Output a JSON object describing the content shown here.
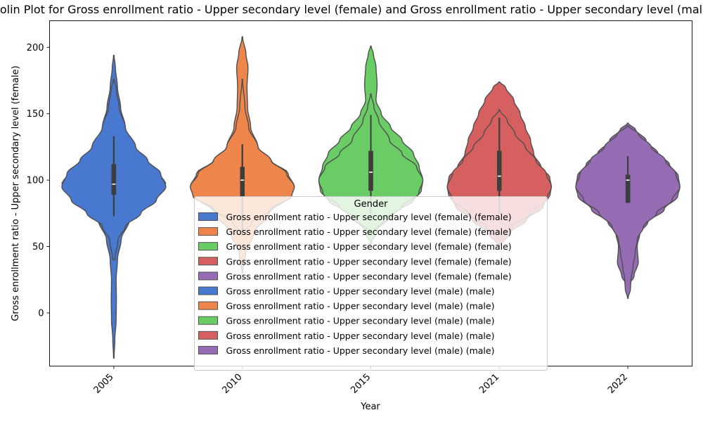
{
  "chart_data": {
    "type": "violin",
    "title": "Violin Plot for Gross enrollment ratio - Upper secondary level (female) and Gross enrollment ratio - Upper secondary level (male)",
    "xlabel": "Year",
    "ylabel": "Gross enrollment ratio - Upper secondary level (female)",
    "categories": [
      "2005",
      "2010",
      "2015",
      "2021",
      "2022"
    ],
    "ylim": [
      -40,
      220
    ],
    "yticks": [
      0,
      50,
      100,
      150,
      200
    ],
    "grid": false,
    "palette": [
      "#4878d0",
      "#ee854a",
      "#6acc64",
      "#d65f5f",
      "#956cb4"
    ],
    "series": [
      {
        "name": "Gross enrollment ratio - Upper secondary level (female)",
        "violins": [
          {
            "category": "2005",
            "min": -34,
            "max": 194,
            "q1": 89,
            "median": 97,
            "q3": 112,
            "whisker_low": 73,
            "whisker_high": 133,
            "profile": [
              [
                -34,
                0.005
              ],
              [
                -20,
                0.02
              ],
              [
                -5,
                0.045
              ],
              [
                10,
                0.05
              ],
              [
                25,
                0.045
              ],
              [
                40,
                0.07
              ],
              [
                55,
                0.14
              ],
              [
                70,
                0.3
              ],
              [
                80,
                0.52
              ],
              [
                90,
                0.88
              ],
              [
                97,
                1.0
              ],
              [
                105,
                0.88
              ],
              [
                115,
                0.58
              ],
              [
                125,
                0.38
              ],
              [
                140,
                0.22
              ],
              [
                155,
                0.13
              ],
              [
                170,
                0.07
              ],
              [
                185,
                0.03
              ],
              [
                194,
                0.005
              ]
            ]
          },
          {
            "category": "2010",
            "min": 30,
            "max": 208,
            "q1": 87,
            "median": 100,
            "q3": 110,
            "whisker_low": 60,
            "whisker_high": 127,
            "profile": [
              [
                30,
                0.005
              ],
              [
                45,
                0.06
              ],
              [
                60,
                0.22
              ],
              [
                75,
                0.52
              ],
              [
                88,
                0.9
              ],
              [
                95,
                1.0
              ],
              [
                105,
                0.88
              ],
              [
                115,
                0.55
              ],
              [
                125,
                0.3
              ],
              [
                140,
                0.16
              ],
              [
                155,
                0.1
              ],
              [
                170,
                0.09
              ],
              [
                185,
                0.11
              ],
              [
                195,
                0.07
              ],
              [
                208,
                0.005
              ]
            ]
          },
          {
            "category": "2015",
            "min": 52,
            "max": 201,
            "q1": 92,
            "median": 106,
            "q3": 122,
            "whisker_low": 75,
            "whisker_high": 149,
            "profile": [
              [
                52,
                0.005
              ],
              [
                62,
                0.12
              ],
              [
                75,
                0.45
              ],
              [
                85,
                0.82
              ],
              [
                92,
                0.97
              ],
              [
                100,
                1.0
              ],
              [
                110,
                0.93
              ],
              [
                120,
                0.82
              ],
              [
                130,
                0.6
              ],
              [
                140,
                0.38
              ],
              [
                150,
                0.2
              ],
              [
                160,
                0.1
              ],
              [
                172,
                0.12
              ],
              [
                185,
                0.1
              ],
              [
                195,
                0.05
              ],
              [
                201,
                0.005
              ]
            ]
          },
          {
            "category": "2021",
            "min": 50,
            "max": 174,
            "q1": 92,
            "median": 103,
            "q3": 122,
            "whisker_low": 75,
            "whisker_high": 147,
            "profile": [
              [
                50,
                0.005
              ],
              [
                60,
                0.2
              ],
              [
                70,
                0.52
              ],
              [
                80,
                0.84
              ],
              [
                90,
                0.98
              ],
              [
                95,
                1.0
              ],
              [
                102,
                0.97
              ],
              [
                110,
                0.8
              ],
              [
                120,
                0.66
              ],
              [
                130,
                0.6
              ],
              [
                140,
                0.5
              ],
              [
                150,
                0.4
              ],
              [
                160,
                0.28
              ],
              [
                170,
                0.12
              ],
              [
                174,
                0.005
              ]
            ]
          },
          {
            "category": "2022",
            "min": 20,
            "max": 143,
            "q1": 83,
            "median": 100,
            "q3": 104,
            "whisker_low": 83,
            "whisker_high": 118,
            "profile": [
              [
                20,
                0.005
              ],
              [
                28,
                0.12
              ],
              [
                38,
                0.2
              ],
              [
                50,
                0.18
              ],
              [
                60,
                0.23
              ],
              [
                68,
                0.38
              ],
              [
                78,
                0.7
              ],
              [
                88,
                0.96
              ],
              [
                95,
                1.0
              ],
              [
                103,
                0.97
              ],
              [
                112,
                0.8
              ],
              [
                120,
                0.58
              ],
              [
                130,
                0.35
              ],
              [
                138,
                0.15
              ],
              [
                143,
                0.005
              ]
            ]
          }
        ]
      },
      {
        "name": "Gross enrollment ratio - Upper secondary level (male)",
        "violins": [
          {
            "category": "2005",
            "min": 40,
            "max": 176,
            "q1": 89,
            "median": 97,
            "q3": 112,
            "whisker_low": 73,
            "whisker_high": 133,
            "profile": [
              [
                40,
                0.02
              ],
              [
                55,
                0.08
              ],
              [
                65,
                0.22
              ],
              [
                75,
                0.52
              ],
              [
                85,
                0.82
              ],
              [
                95,
                1.0
              ],
              [
                105,
                0.9
              ],
              [
                115,
                0.65
              ],
              [
                125,
                0.42
              ],
              [
                140,
                0.22
              ],
              [
                155,
                0.1
              ],
              [
                168,
                0.05
              ],
              [
                176,
                0.005
              ]
            ]
          },
          {
            "category": "2010",
            "min": 60,
            "max": 176,
            "q1": 87,
            "median": 100,
            "q3": 110,
            "whisker_low": 60,
            "whisker_high": 127,
            "profile": [
              [
                60,
                0.02
              ],
              [
                68,
                0.18
              ],
              [
                78,
                0.55
              ],
              [
                88,
                0.95
              ],
              [
                95,
                1.0
              ],
              [
                105,
                0.85
              ],
              [
                115,
                0.55
              ],
              [
                125,
                0.3
              ],
              [
                140,
                0.12
              ],
              [
                155,
                0.05
              ],
              [
                176,
                0.005
              ]
            ]
          },
          {
            "category": "2015",
            "min": 60,
            "max": 165,
            "q1": 92,
            "median": 106,
            "q3": 122,
            "whisker_low": 75,
            "whisker_high": 149,
            "profile": [
              [
                60,
                0.02
              ],
              [
                70,
                0.25
              ],
              [
                80,
                0.6
              ],
              [
                90,
                0.92
              ],
              [
                100,
                1.0
              ],
              [
                110,
                0.88
              ],
              [
                120,
                0.6
              ],
              [
                130,
                0.36
              ],
              [
                145,
                0.15
              ],
              [
                155,
                0.06
              ],
              [
                165,
                0.005
              ]
            ]
          },
          {
            "category": "2021",
            "min": 55,
            "max": 153,
            "q1": 92,
            "median": 103,
            "q3": 122,
            "whisker_low": 75,
            "whisker_high": 147,
            "profile": [
              [
                55,
                0.01
              ],
              [
                65,
                0.25
              ],
              [
                75,
                0.6
              ],
              [
                85,
                0.9
              ],
              [
                95,
                1.0
              ],
              [
                105,
                0.9
              ],
              [
                115,
                0.7
              ],
              [
                125,
                0.5
              ],
              [
                135,
                0.3
              ],
              [
                145,
                0.15
              ],
              [
                153,
                0.005
              ]
            ]
          },
          {
            "category": "2022",
            "min": 11,
            "max": 141,
            "q1": 83,
            "median": 100,
            "q3": 104,
            "whisker_low": 83,
            "whisker_high": 118,
            "profile": [
              [
                11,
                0.005
              ],
              [
                18,
                0.05
              ],
              [
                25,
                0.06
              ],
              [
                35,
                0.1
              ],
              [
                45,
                0.14
              ],
              [
                55,
                0.18
              ],
              [
                65,
                0.3
              ],
              [
                75,
                0.55
              ],
              [
                85,
                0.85
              ],
              [
                95,
                1.0
              ],
              [
                105,
                0.92
              ],
              [
                115,
                0.72
              ],
              [
                125,
                0.45
              ],
              [
                135,
                0.2
              ],
              [
                141,
                0.005
              ]
            ]
          }
        ]
      }
    ],
    "legend": {
      "title": "Gender",
      "placement": "center",
      "entries": [
        "Gross enrollment ratio - Upper secondary level (female) (female)",
        "Gross enrollment ratio - Upper secondary level (female) (female)",
        "Gross enrollment ratio - Upper secondary level (female) (female)",
        "Gross enrollment ratio - Upper secondary level (female) (female)",
        "Gross enrollment ratio - Upper secondary level (female) (female)",
        "Gross enrollment ratio - Upper secondary level (male) (male)",
        "Gross enrollment ratio - Upper secondary level (male) (male)",
        "Gross enrollment ratio - Upper secondary level (male) (male)",
        "Gross enrollment ratio - Upper secondary level (male) (male)",
        "Gross enrollment ratio - Upper secondary level (male) (male)"
      ]
    }
  }
}
